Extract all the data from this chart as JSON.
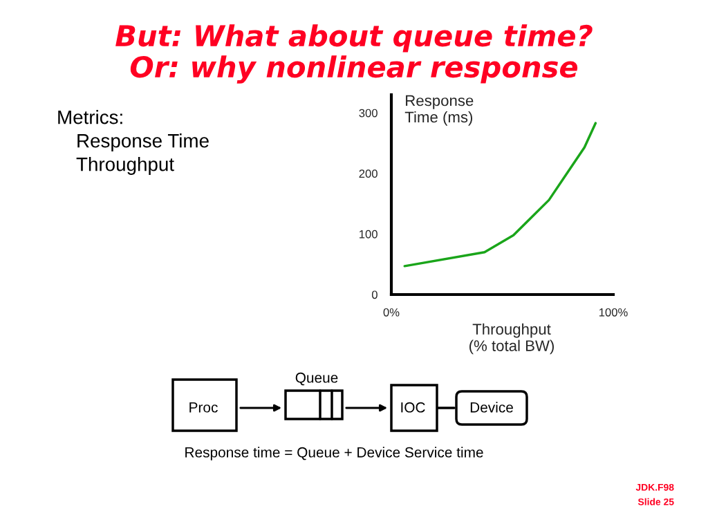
{
  "chart_data": {
    "type": "line",
    "title": "But: What about queue time?\nOr: why nonlinear response",
    "xlabel": "Throughput\n(% total BW)",
    "ylabel": "Response\nTime (ms)",
    "x": [
      6,
      42,
      55,
      71,
      87,
      92
    ],
    "series": [
      {
        "color": "#1aa51a",
        "values": [
          47,
          70,
          98,
          156,
          243,
          283
        ]
      }
    ],
    "xlim": [
      0,
      100
    ],
    "xticks": [
      {
        "value": 0,
        "label": "0%"
      },
      {
        "value": 100,
        "label": "100%"
      }
    ],
    "ylim": [
      0,
      330
    ],
    "yticks": [
      0,
      100,
      200,
      300
    ],
    "marker": "none",
    "line_style": "solid",
    "annotations": [
      "Metrics:",
      "Response Time",
      "Throughput",
      "Queue",
      "Proc",
      "IOC",
      "Device",
      "Response time = Queue + Device Service time",
      "JDK.F98",
      "Slide 25"
    ]
  }
}
